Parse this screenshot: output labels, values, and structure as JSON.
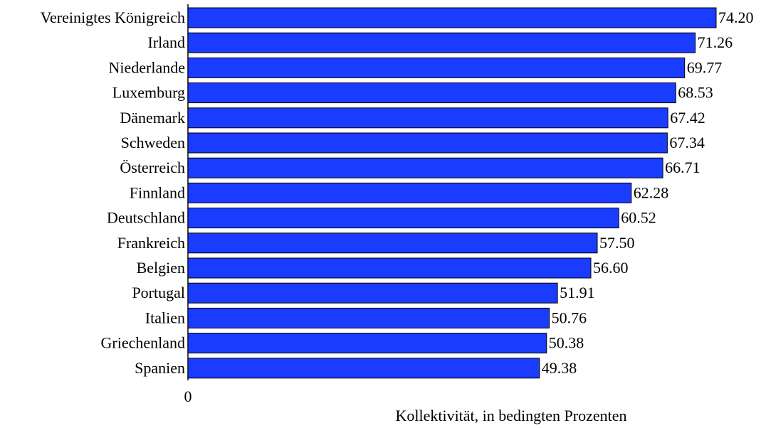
{
  "chart_data": {
    "type": "bar",
    "orientation": "horizontal",
    "categories": [
      "Vereinigtes Königreich",
      "Irland",
      "Niederlande",
      "Luxemburg",
      "Dänemark",
      "Schweden",
      "Österreich",
      "Finnland",
      "Deutschland",
      "Frankreich",
      "Belgien",
      "Portugal",
      "Italien",
      "Griechenland",
      "Spanien"
    ],
    "values": [
      74.2,
      71.26,
      69.77,
      68.53,
      67.42,
      67.34,
      66.71,
      62.28,
      60.52,
      57.5,
      56.6,
      51.91,
      50.76,
      50.38,
      49.38
    ],
    "value_labels": [
      "74.20",
      "71.26",
      "69.77",
      "68.53",
      "67.42",
      "67.34",
      "66.71",
      "62.28",
      "60.52",
      "57.50",
      "56.60",
      "51.91",
      "50.76",
      "50.38",
      "49.38"
    ],
    "title": "",
    "xlabel": "Kollektivität, in bedingten Prozenten",
    "ylabel": "",
    "x_tick_labels": [
      "0"
    ],
    "xlim": [
      0,
      100
    ],
    "grid": false,
    "legend": "none",
    "bar_color": "#1a3cff",
    "bar_edge_color": "#000000"
  }
}
